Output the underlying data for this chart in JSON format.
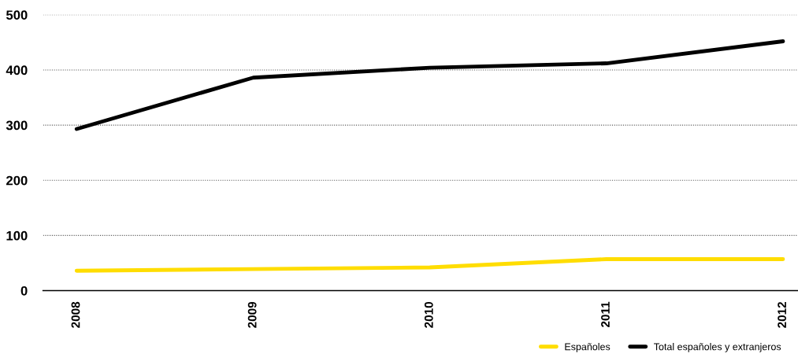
{
  "chart_data": {
    "type": "line",
    "categories": [
      "2008",
      "2009",
      "2010",
      "2011",
      "2012"
    ],
    "series": [
      {
        "name": "Españoles",
        "color": "#ffdd00",
        "values": [
          36,
          39,
          42,
          57,
          57
        ]
      },
      {
        "name": "Total españoles y extranjeros",
        "color": "#000000",
        "values": [
          293,
          386,
          404,
          412,
          452
        ]
      }
    ],
    "ylim": [
      0,
      500
    ],
    "yticks": [
      0,
      100,
      200,
      300,
      400,
      500
    ],
    "grid": "y",
    "legend": "bottom right",
    "marker": "none",
    "line_style": "solid"
  }
}
